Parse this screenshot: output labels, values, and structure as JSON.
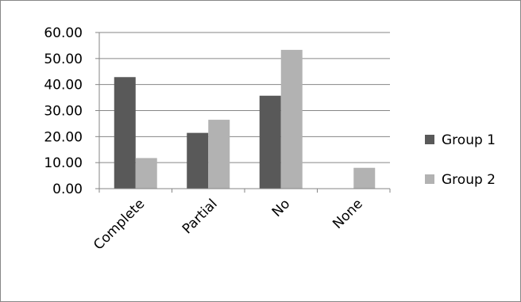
{
  "chart_data": {
    "type": "bar",
    "categories": [
      "Complete",
      "Partial",
      "No",
      "None"
    ],
    "series": [
      {
        "name": "Group 1",
        "values": [
          42.86,
          21.43,
          35.71,
          0.0
        ],
        "color": "#595959"
      },
      {
        "name": "Group 2",
        "values": [
          11.76,
          26.47,
          53.33,
          8.0
        ],
        "color": "#b2b2b2"
      }
    ],
    "ylim": [
      0,
      60
    ],
    "y_ticks": [
      "0.00",
      "10.00",
      "20.00",
      "30.00",
      "40.00",
      "50.00",
      "60.00"
    ],
    "grid": true,
    "legend_position": "right",
    "title": "",
    "xlabel": "",
    "ylabel": ""
  }
}
